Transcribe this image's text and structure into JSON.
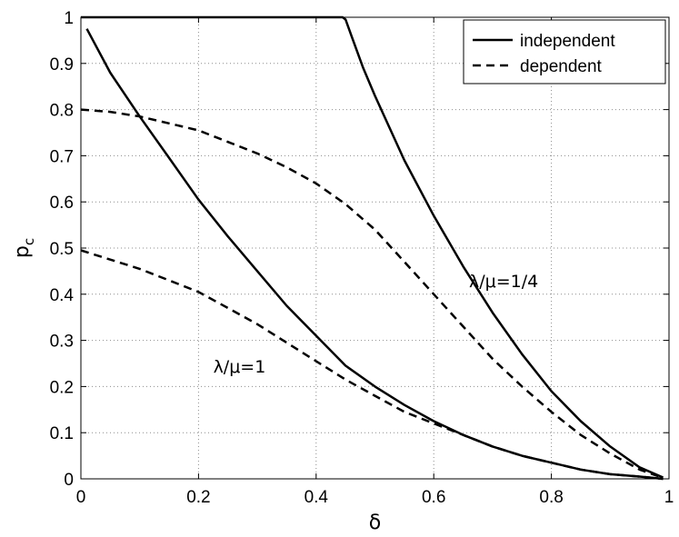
{
  "chart_data": {
    "type": "line",
    "xlabel": "δ",
    "ylabel": "p",
    "ylabel_sub": "c",
    "xlim": [
      0,
      1
    ],
    "ylim": [
      0,
      1
    ],
    "grid": true,
    "legend_position": "top-right",
    "x_ticks": [
      0,
      0.2,
      0.4,
      0.6,
      0.8,
      1
    ],
    "x_tick_labels": [
      "0",
      "0.2",
      "0.4",
      "0.6",
      "0.8",
      "1"
    ],
    "y_ticks": [
      0,
      0.1,
      0.2,
      0.3,
      0.4,
      0.5,
      0.6,
      0.7,
      0.8,
      0.9,
      1
    ],
    "y_tick_labels": [
      "0",
      "0.1",
      "0.2",
      "0.3",
      "0.4",
      "0.5",
      "0.6",
      "0.7",
      "0.8",
      "0.9",
      "1"
    ],
    "legend": [
      {
        "label": "independent",
        "style": "solid"
      },
      {
        "label": "dependent",
        "style": "dashed"
      }
    ],
    "annotations": [
      {
        "text": "λ/μ=1/4",
        "x": 0.66,
        "y": 0.415
      },
      {
        "text": "λ/μ=1",
        "x": 0.225,
        "y": 0.23
      }
    ],
    "series": [
      {
        "group": "λ/μ=1/4",
        "style": "solid",
        "x": [
          0,
          0.1,
          0.2,
          0.3,
          0.4,
          0.44,
          0.445,
          0.45,
          0.46,
          0.48,
          0.5,
          0.55,
          0.6,
          0.65,
          0.7,
          0.75,
          0.8,
          0.85,
          0.9,
          0.95,
          0.99
        ],
        "y": [
          1,
          1,
          1,
          1,
          1,
          1,
          1,
          0.995,
          0.96,
          0.89,
          0.83,
          0.69,
          0.57,
          0.46,
          0.36,
          0.27,
          0.19,
          0.125,
          0.07,
          0.025,
          0.003
        ]
      },
      {
        "group": "λ/μ=1/4",
        "style": "dashed",
        "x": [
          0,
          0.05,
          0.1,
          0.15,
          0.2,
          0.25,
          0.3,
          0.35,
          0.4,
          0.45,
          0.5,
          0.55,
          0.6,
          0.65,
          0.7,
          0.75,
          0.8,
          0.85,
          0.9,
          0.95,
          0.99
        ],
        "y": [
          0.8,
          0.795,
          0.785,
          0.77,
          0.755,
          0.73,
          0.705,
          0.675,
          0.64,
          0.595,
          0.54,
          0.47,
          0.4,
          0.33,
          0.26,
          0.2,
          0.145,
          0.095,
          0.055,
          0.02,
          0.002
        ]
      },
      {
        "group": "λ/μ=1",
        "style": "solid",
        "x": [
          0.01,
          0.05,
          0.1,
          0.15,
          0.2,
          0.25,
          0.3,
          0.35,
          0.4,
          0.45,
          0.5,
          0.55,
          0.6,
          0.65,
          0.7,
          0.75,
          0.8,
          0.85,
          0.9,
          0.95,
          0.99
        ],
        "y": [
          0.975,
          0.88,
          0.785,
          0.695,
          0.605,
          0.525,
          0.45,
          0.375,
          0.31,
          0.245,
          0.2,
          0.16,
          0.125,
          0.095,
          0.07,
          0.05,
          0.035,
          0.02,
          0.01,
          0.005,
          0
        ]
      },
      {
        "group": "λ/μ=1",
        "style": "dashed",
        "x": [
          0,
          0.05,
          0.1,
          0.15,
          0.2,
          0.25,
          0.3,
          0.35,
          0.4,
          0.45,
          0.5,
          0.55,
          0.6,
          0.65,
          0.7,
          0.75,
          0.8,
          0.85,
          0.9,
          0.95,
          0.99
        ],
        "y": [
          0.495,
          0.475,
          0.455,
          0.43,
          0.405,
          0.37,
          0.335,
          0.295,
          0.255,
          0.215,
          0.18,
          0.145,
          0.12,
          0.095,
          0.07,
          0.05,
          0.035,
          0.02,
          0.01,
          0.005,
          0
        ]
      }
    ]
  }
}
